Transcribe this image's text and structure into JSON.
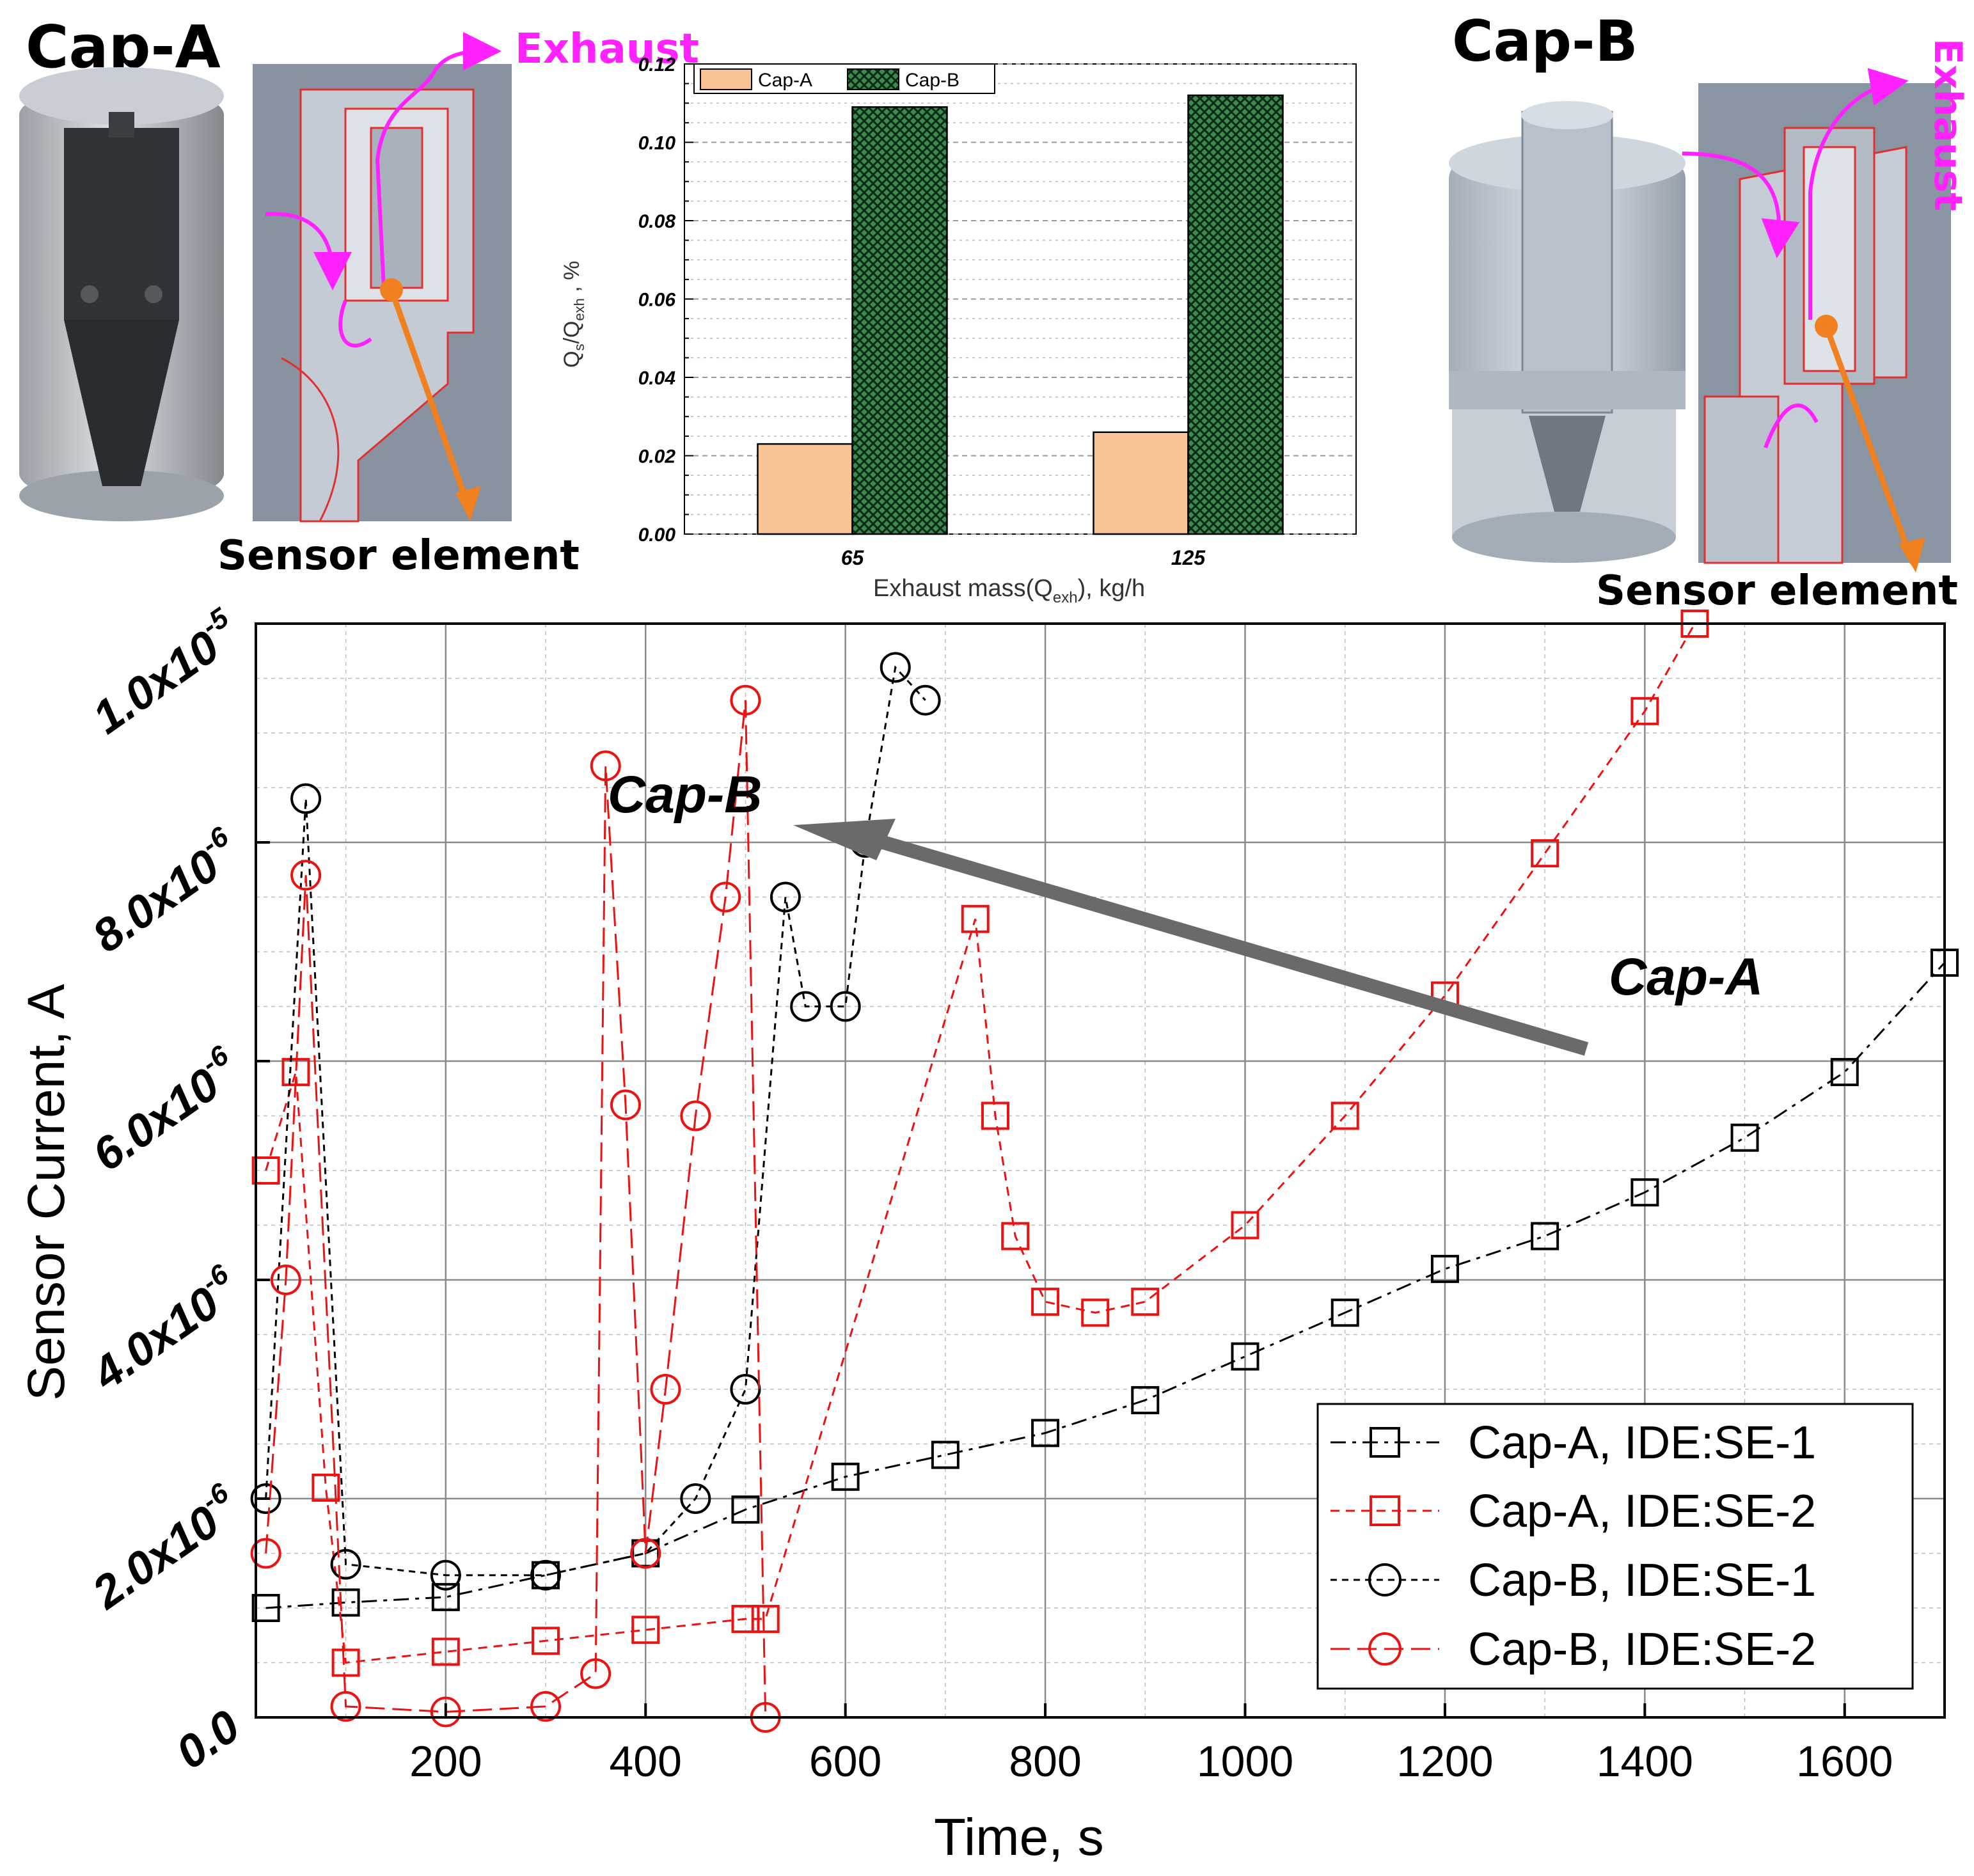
{
  "panels": {
    "cap_a": {
      "title": "Cap-A",
      "exhaust_label": "Exhaust",
      "sensor_label": "Sensor element"
    },
    "cap_b": {
      "title": "Cap-B",
      "exhaust_label": "Exhaust",
      "sensor_label": "Sensor element"
    }
  },
  "colors": {
    "cap_a_bar": "#f8c495",
    "cap_b_bar": "#3c8a4e",
    "series_black": "#000000",
    "series_red": "#ee1111",
    "flow_arrow": "#ff22ff",
    "sensor_arrow": "#f08020",
    "model_body": "#b8c0cc",
    "model_outline": "#e03030"
  },
  "chart_data": [
    {
      "type": "bar",
      "title": "",
      "xlabel": "Exhaust mass(Q",
      "xlabel_sub": "exh",
      "xlabel_suffix": "), kg/h",
      "ylabel_pre": "Q",
      "ylabel_sub1": "s",
      "ylabel_mid": "/Q",
      "ylabel_sub2": "exh",
      "ylabel_suffix": " , %",
      "categories": [
        "65",
        "125"
      ],
      "ylim": [
        0,
        0.12
      ],
      "yticks": [
        "0.00",
        "0.02",
        "0.04",
        "0.06",
        "0.08",
        "0.10",
        "0.12"
      ],
      "legend": [
        "Cap-A",
        "Cap-B"
      ],
      "series": [
        {
          "name": "Cap-A",
          "values": [
            0.023,
            0.026
          ]
        },
        {
          "name": "Cap-B",
          "values": [
            0.109,
            0.112
          ]
        }
      ]
    },
    {
      "type": "scatter",
      "xlabel": "Time, s",
      "ylabel": "Sensor Current, A",
      "xlim": [
        10,
        1700
      ],
      "ylim": [
        0,
        1e-05
      ],
      "xticks": [
        "200",
        "400",
        "600",
        "800",
        "1000",
        "1200",
        "1400",
        "1600"
      ],
      "ytick_labels": [
        {
          "mant": "0.0",
          "exp": ""
        },
        {
          "mant": "2.0x10",
          "exp": "-6"
        },
        {
          "mant": "4.0x10",
          "exp": "-6"
        },
        {
          "mant": "6.0x10",
          "exp": "-6"
        },
        {
          "mant": "8.0x10",
          "exp": "-6"
        },
        {
          "mant": "1.0x10",
          "exp": "-5"
        }
      ],
      "grid": true,
      "legend_position": "bottom-right",
      "annotations": {
        "cap_b": "Cap-B",
        "cap_a": "Cap-A"
      },
      "series": [
        {
          "name": "Cap-A, IDE:SE-1",
          "marker": "square",
          "color": "black",
          "x": [
            20,
            100,
            200,
            300,
            400,
            500,
            600,
            700,
            800,
            900,
            1000,
            1100,
            1200,
            1300,
            1400,
            1500,
            1600,
            1700
          ],
          "y": [
            1e-06,
            1.05e-06,
            1.1e-06,
            1.3e-06,
            1.5e-06,
            1.9e-06,
            2.2e-06,
            2.4e-06,
            2.6e-06,
            2.9e-06,
            3.3e-06,
            3.7e-06,
            4.1e-06,
            4.4e-06,
            4.8e-06,
            5.3e-06,
            5.9e-06,
            6.9e-06
          ]
        },
        {
          "name": "Cap-A, IDE:SE-2",
          "marker": "square",
          "color": "red",
          "x": [
            20,
            50,
            80,
            100,
            200,
            300,
            400,
            500,
            520,
            730,
            750,
            770,
            800,
            850,
            900,
            1000,
            1100,
            1200,
            1300,
            1400,
            1450
          ],
          "y": [
            5e-06,
            5.9e-06,
            2.1e-06,
            5e-07,
            6e-07,
            7e-07,
            8e-07,
            9e-07,
            9e-07,
            7.3e-06,
            5.5e-06,
            4.4e-06,
            3.8e-06,
            3.7e-06,
            3.8e-06,
            4.5e-06,
            5.5e-06,
            6.6e-06,
            7.9e-06,
            9.2e-06,
            1e-05
          ]
        },
        {
          "name": "Cap-B, IDE:SE-1",
          "marker": "circle",
          "color": "black",
          "x": [
            20,
            60,
            100,
            200,
            300,
            400,
            450,
            500,
            540,
            560,
            600,
            620,
            650,
            680
          ],
          "y": [
            2e-06,
            8.4e-06,
            1.4e-06,
            1.3e-06,
            1.3e-06,
            1.5e-06,
            2e-06,
            3e-06,
            7.5e-06,
            6.5e-06,
            6.5e-06,
            8e-06,
            9.6e-06,
            9.3e-06
          ]
        },
        {
          "name": "Cap-B, IDE:SE-2",
          "marker": "circle",
          "color": "red",
          "x": [
            20,
            40,
            60,
            100,
            200,
            300,
            350,
            360,
            380,
            400,
            420,
            450,
            480,
            500,
            520
          ],
          "y": [
            1.5e-06,
            4e-06,
            7.7e-06,
            1e-07,
            5e-08,
            1e-07,
            4e-07,
            8.7e-06,
            5.6e-06,
            1.5e-06,
            3e-06,
            5.5e-06,
            7.5e-06,
            9.3e-06,
            0.0
          ]
        }
      ]
    }
  ]
}
